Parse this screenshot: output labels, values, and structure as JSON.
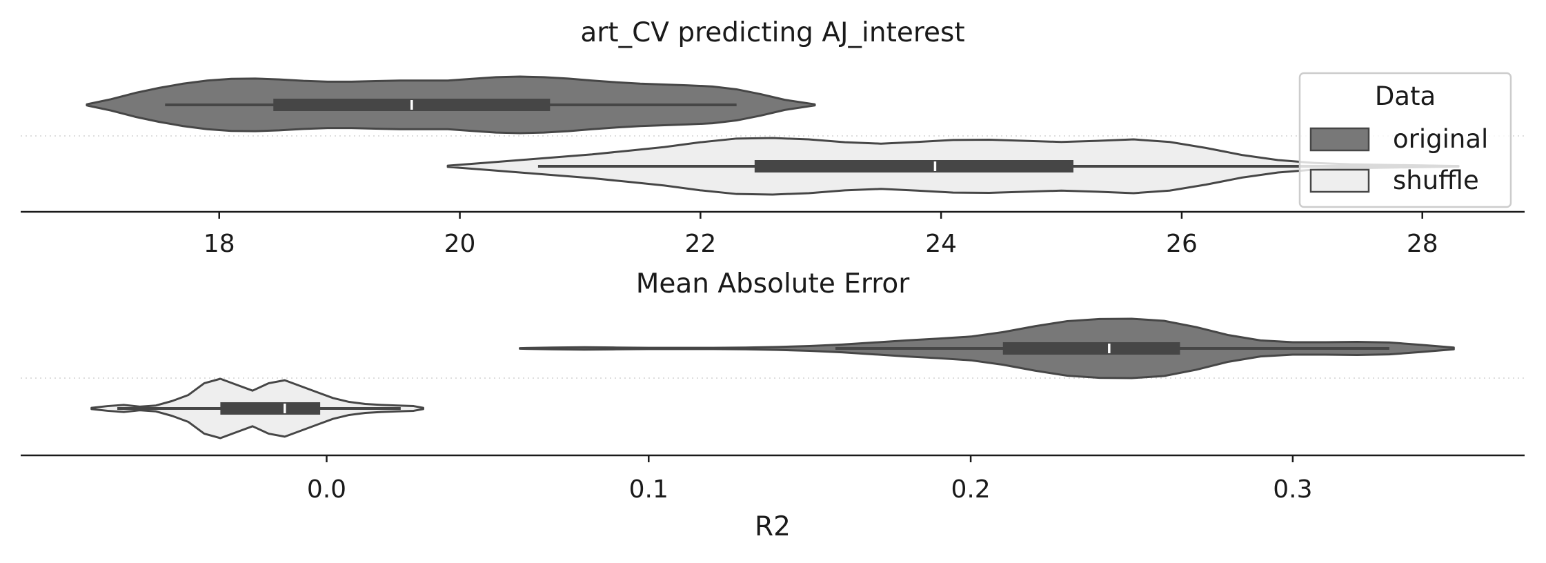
{
  "figure": {
    "title": "art_CV predicting AJ_interest"
  },
  "legend": {
    "title": "Data",
    "placement": "upper-right",
    "entries": [
      {
        "label": "original",
        "color": "#787878"
      },
      {
        "label": "shuffle",
        "color": "#eeeeee"
      }
    ]
  },
  "colors": {
    "original": "#787878",
    "shuffle": "#eeeeee",
    "edge": "#464646",
    "box": "#464646",
    "median": "#ffffff",
    "separator": "#dddddd"
  },
  "chart_data": [
    {
      "type": "violin",
      "orientation": "horizontal",
      "xlabel": "Mean Absolute Error",
      "ylabel": "",
      "xlim": [
        16.35,
        28.85
      ],
      "xticks": [
        18,
        20,
        22,
        24,
        26,
        28
      ],
      "xtick_labels": [
        "18",
        "20",
        "22",
        "24",
        "26",
        "28"
      ],
      "series": [
        {
          "name": "original",
          "kde_range": [
            16.9,
            22.95
          ],
          "density_x": [
            16.9,
            17.1,
            17.3,
            17.5,
            17.7,
            17.9,
            18.1,
            18.3,
            18.5,
            18.7,
            18.9,
            19.1,
            19.3,
            19.5,
            19.7,
            19.9,
            20.1,
            20.3,
            20.5,
            20.7,
            20.9,
            21.1,
            21.3,
            21.5,
            21.7,
            21.9,
            22.1,
            22.3,
            22.5,
            22.7,
            22.95
          ],
          "density": [
            0.02,
            0.2,
            0.42,
            0.6,
            0.75,
            0.86,
            0.92,
            0.93,
            0.9,
            0.85,
            0.82,
            0.82,
            0.84,
            0.86,
            0.86,
            0.86,
            0.92,
            0.98,
            1.0,
            0.98,
            0.93,
            0.86,
            0.8,
            0.75,
            0.72,
            0.69,
            0.65,
            0.55,
            0.38,
            0.18,
            0.02
          ],
          "whisker": [
            17.55,
            22.3
          ],
          "q1": 18.45,
          "median": 19.6,
          "q3": 20.75
        },
        {
          "name": "shuffle",
          "kde_range": [
            19.9,
            28.3
          ],
          "density_x": [
            19.9,
            20.2,
            20.5,
            20.8,
            21.1,
            21.4,
            21.7,
            22.0,
            22.3,
            22.6,
            22.9,
            23.2,
            23.5,
            23.8,
            24.1,
            24.4,
            24.7,
            25.0,
            25.3,
            25.6,
            25.9,
            26.2,
            26.5,
            26.8,
            27.1,
            27.4,
            27.7,
            28.0,
            28.3
          ],
          "density": [
            0.02,
            0.12,
            0.22,
            0.32,
            0.42,
            0.55,
            0.68,
            0.85,
            0.98,
            1.0,
            0.95,
            0.85,
            0.8,
            0.86,
            0.93,
            0.94,
            0.9,
            0.86,
            0.9,
            0.95,
            0.86,
            0.65,
            0.4,
            0.22,
            0.12,
            0.07,
            0.05,
            0.03,
            0.01
          ],
          "whisker": [
            20.65,
            28.3
          ],
          "q1": 22.45,
          "median": 23.95,
          "q3": 25.1
        }
      ]
    },
    {
      "type": "violin",
      "orientation": "horizontal",
      "xlabel": "R2",
      "ylabel": "",
      "xlim": [
        -0.095,
        0.372
      ],
      "xticks": [
        0.0,
        0.1,
        0.2,
        0.3
      ],
      "xtick_labels": [
        "0.0",
        "0.1",
        "0.2",
        "0.3"
      ],
      "series": [
        {
          "name": "original",
          "kde_range": [
            0.06,
            0.35
          ],
          "density_x": [
            0.06,
            0.07,
            0.08,
            0.09,
            0.1,
            0.11,
            0.12,
            0.13,
            0.14,
            0.15,
            0.16,
            0.17,
            0.18,
            0.19,
            0.2,
            0.21,
            0.22,
            0.23,
            0.24,
            0.25,
            0.26,
            0.27,
            0.28,
            0.29,
            0.3,
            0.31,
            0.32,
            0.33,
            0.34,
            0.35
          ],
          "density": [
            0.01,
            0.03,
            0.04,
            0.03,
            0.02,
            0.02,
            0.02,
            0.03,
            0.05,
            0.08,
            0.13,
            0.2,
            0.27,
            0.33,
            0.4,
            0.55,
            0.75,
            0.92,
            0.99,
            1.0,
            0.93,
            0.72,
            0.45,
            0.27,
            0.21,
            0.21,
            0.22,
            0.2,
            0.12,
            0.03
          ],
          "whisker": [
            0.158,
            0.33
          ],
          "q1": 0.21,
          "median": 0.243,
          "q3": 0.265
        },
        {
          "name": "shuffle",
          "kde_range": [
            -0.073,
            0.03
          ],
          "density_x": [
            -0.073,
            -0.068,
            -0.063,
            -0.058,
            -0.053,
            -0.048,
            -0.043,
            -0.038,
            -0.033,
            -0.028,
            -0.023,
            -0.018,
            -0.013,
            -0.008,
            -0.003,
            0.002,
            0.007,
            0.012,
            0.017,
            0.022,
            0.027,
            0.03
          ],
          "density": [
            0.02,
            0.08,
            0.12,
            0.06,
            0.1,
            0.25,
            0.45,
            0.85,
            1.0,
            0.8,
            0.6,
            0.85,
            0.95,
            0.75,
            0.55,
            0.35,
            0.22,
            0.15,
            0.12,
            0.1,
            0.08,
            0.02
          ],
          "whisker": [
            -0.065,
            0.023
          ],
          "q1": -0.033,
          "median": -0.013,
          "q3": -0.002
        }
      ]
    }
  ]
}
